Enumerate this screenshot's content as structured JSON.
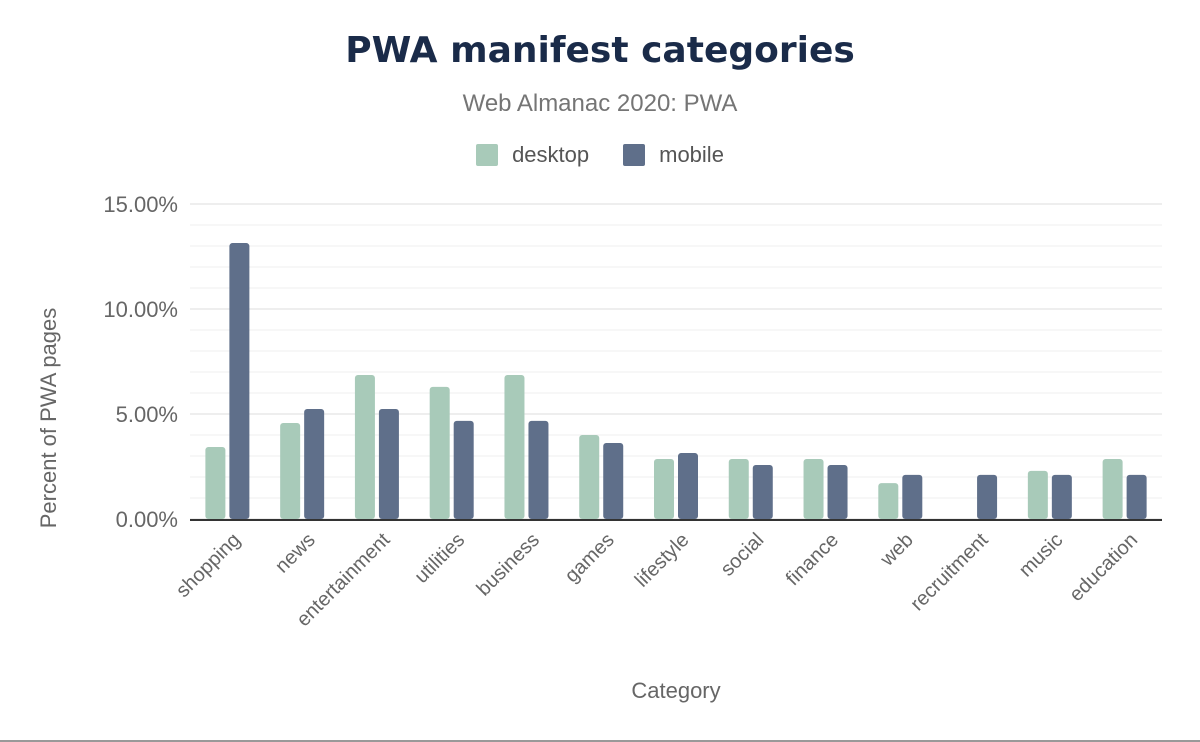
{
  "chart_data": {
    "type": "bar",
    "title": "PWA manifest categories",
    "subtitle": "Web Almanac 2020: PWA",
    "xlabel": "Category",
    "ylabel": "Percent of PWA pages",
    "ylim": [
      0,
      15
    ],
    "yticks": [
      "0.00%",
      "5.00%",
      "10.00%",
      "15.00%"
    ],
    "grid": true,
    "legend_position": "top",
    "categories": [
      "shopping",
      "news",
      "entertainment",
      "utilities",
      "business",
      "games",
      "lifestyle",
      "social",
      "finance",
      "web",
      "recruitment",
      "music",
      "education"
    ],
    "series": [
      {
        "name": "desktop",
        "color": "#a8cab9",
        "values": [
          3.43,
          4.57,
          6.86,
          6.29,
          6.86,
          4.0,
          2.86,
          2.86,
          2.86,
          1.71,
          0,
          2.29,
          2.86
        ]
      },
      {
        "name": "mobile",
        "color": "#5f6f8a",
        "values": [
          13.14,
          5.24,
          5.24,
          4.67,
          4.67,
          3.62,
          3.14,
          2.57,
          2.57,
          2.1,
          2.1,
          2.1,
          2.1
        ]
      }
    ]
  }
}
